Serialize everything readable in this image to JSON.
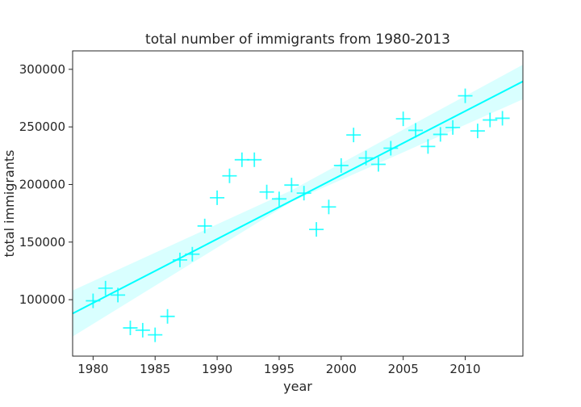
{
  "chart_data": {
    "type": "scatter",
    "title": "total number of immigrants from 1980-2013",
    "xlabel": "year",
    "ylabel": "total immigrants",
    "xlim": [
      1978.35,
      2014.65
    ],
    "ylim": [
      51000,
      316000
    ],
    "x_ticks": [
      1980,
      1985,
      1990,
      1995,
      2000,
      2005,
      2010
    ],
    "y_ticks": [
      100000,
      150000,
      200000,
      250000,
      300000
    ],
    "marker": "plus",
    "color": "#00ffff",
    "grid": false,
    "points": [
      {
        "x": 1980,
        "y": 99000
      },
      {
        "x": 1981,
        "y": 110000
      },
      {
        "x": 1982,
        "y": 104000
      },
      {
        "x": 1983,
        "y": 75500
      },
      {
        "x": 1984,
        "y": 73500
      },
      {
        "x": 1985,
        "y": 69500
      },
      {
        "x": 1986,
        "y": 85500
      },
      {
        "x": 1987,
        "y": 134500
      },
      {
        "x": 1988,
        "y": 139500
      },
      {
        "x": 1989,
        "y": 164000
      },
      {
        "x": 1990,
        "y": 188500
      },
      {
        "x": 1991,
        "y": 207500
      },
      {
        "x": 1992,
        "y": 221500
      },
      {
        "x": 1993,
        "y": 221500
      },
      {
        "x": 1994,
        "y": 193500
      },
      {
        "x": 1995,
        "y": 187500
      },
      {
        "x": 1996,
        "y": 199500
      },
      {
        "x": 1997,
        "y": 192500
      },
      {
        "x": 1998,
        "y": 161000
      },
      {
        "x": 1999,
        "y": 180500
      },
      {
        "x": 2000,
        "y": 216500
      },
      {
        "x": 2001,
        "y": 243000
      },
      {
        "x": 2002,
        "y": 223000
      },
      {
        "x": 2003,
        "y": 217500
      },
      {
        "x": 2004,
        "y": 231500
      },
      {
        "x": 2005,
        "y": 257000
      },
      {
        "x": 2006,
        "y": 247000
      },
      {
        "x": 2007,
        "y": 233000
      },
      {
        "x": 2008,
        "y": 243500
      },
      {
        "x": 2009,
        "y": 249500
      },
      {
        "x": 2010,
        "y": 277000
      },
      {
        "x": 2011,
        "y": 246500
      },
      {
        "x": 2012,
        "y": 256000
      },
      {
        "x": 2013,
        "y": 257500
      }
    ],
    "regression": {
      "line": [
        {
          "x": 1978.35,
          "y": 88000
        },
        {
          "x": 2014.65,
          "y": 289500
        }
      ],
      "band_upper": [
        {
          "x": 1978.35,
          "y": 108000
        },
        {
          "x": 1996,
          "y": 195000
        },
        {
          "x": 2014.65,
          "y": 304000
        }
      ],
      "band_lower": [
        {
          "x": 1978.35,
          "y": 68000
        },
        {
          "x": 1996,
          "y": 185000
        },
        {
          "x": 2014.65,
          "y": 274000
        }
      ]
    }
  }
}
